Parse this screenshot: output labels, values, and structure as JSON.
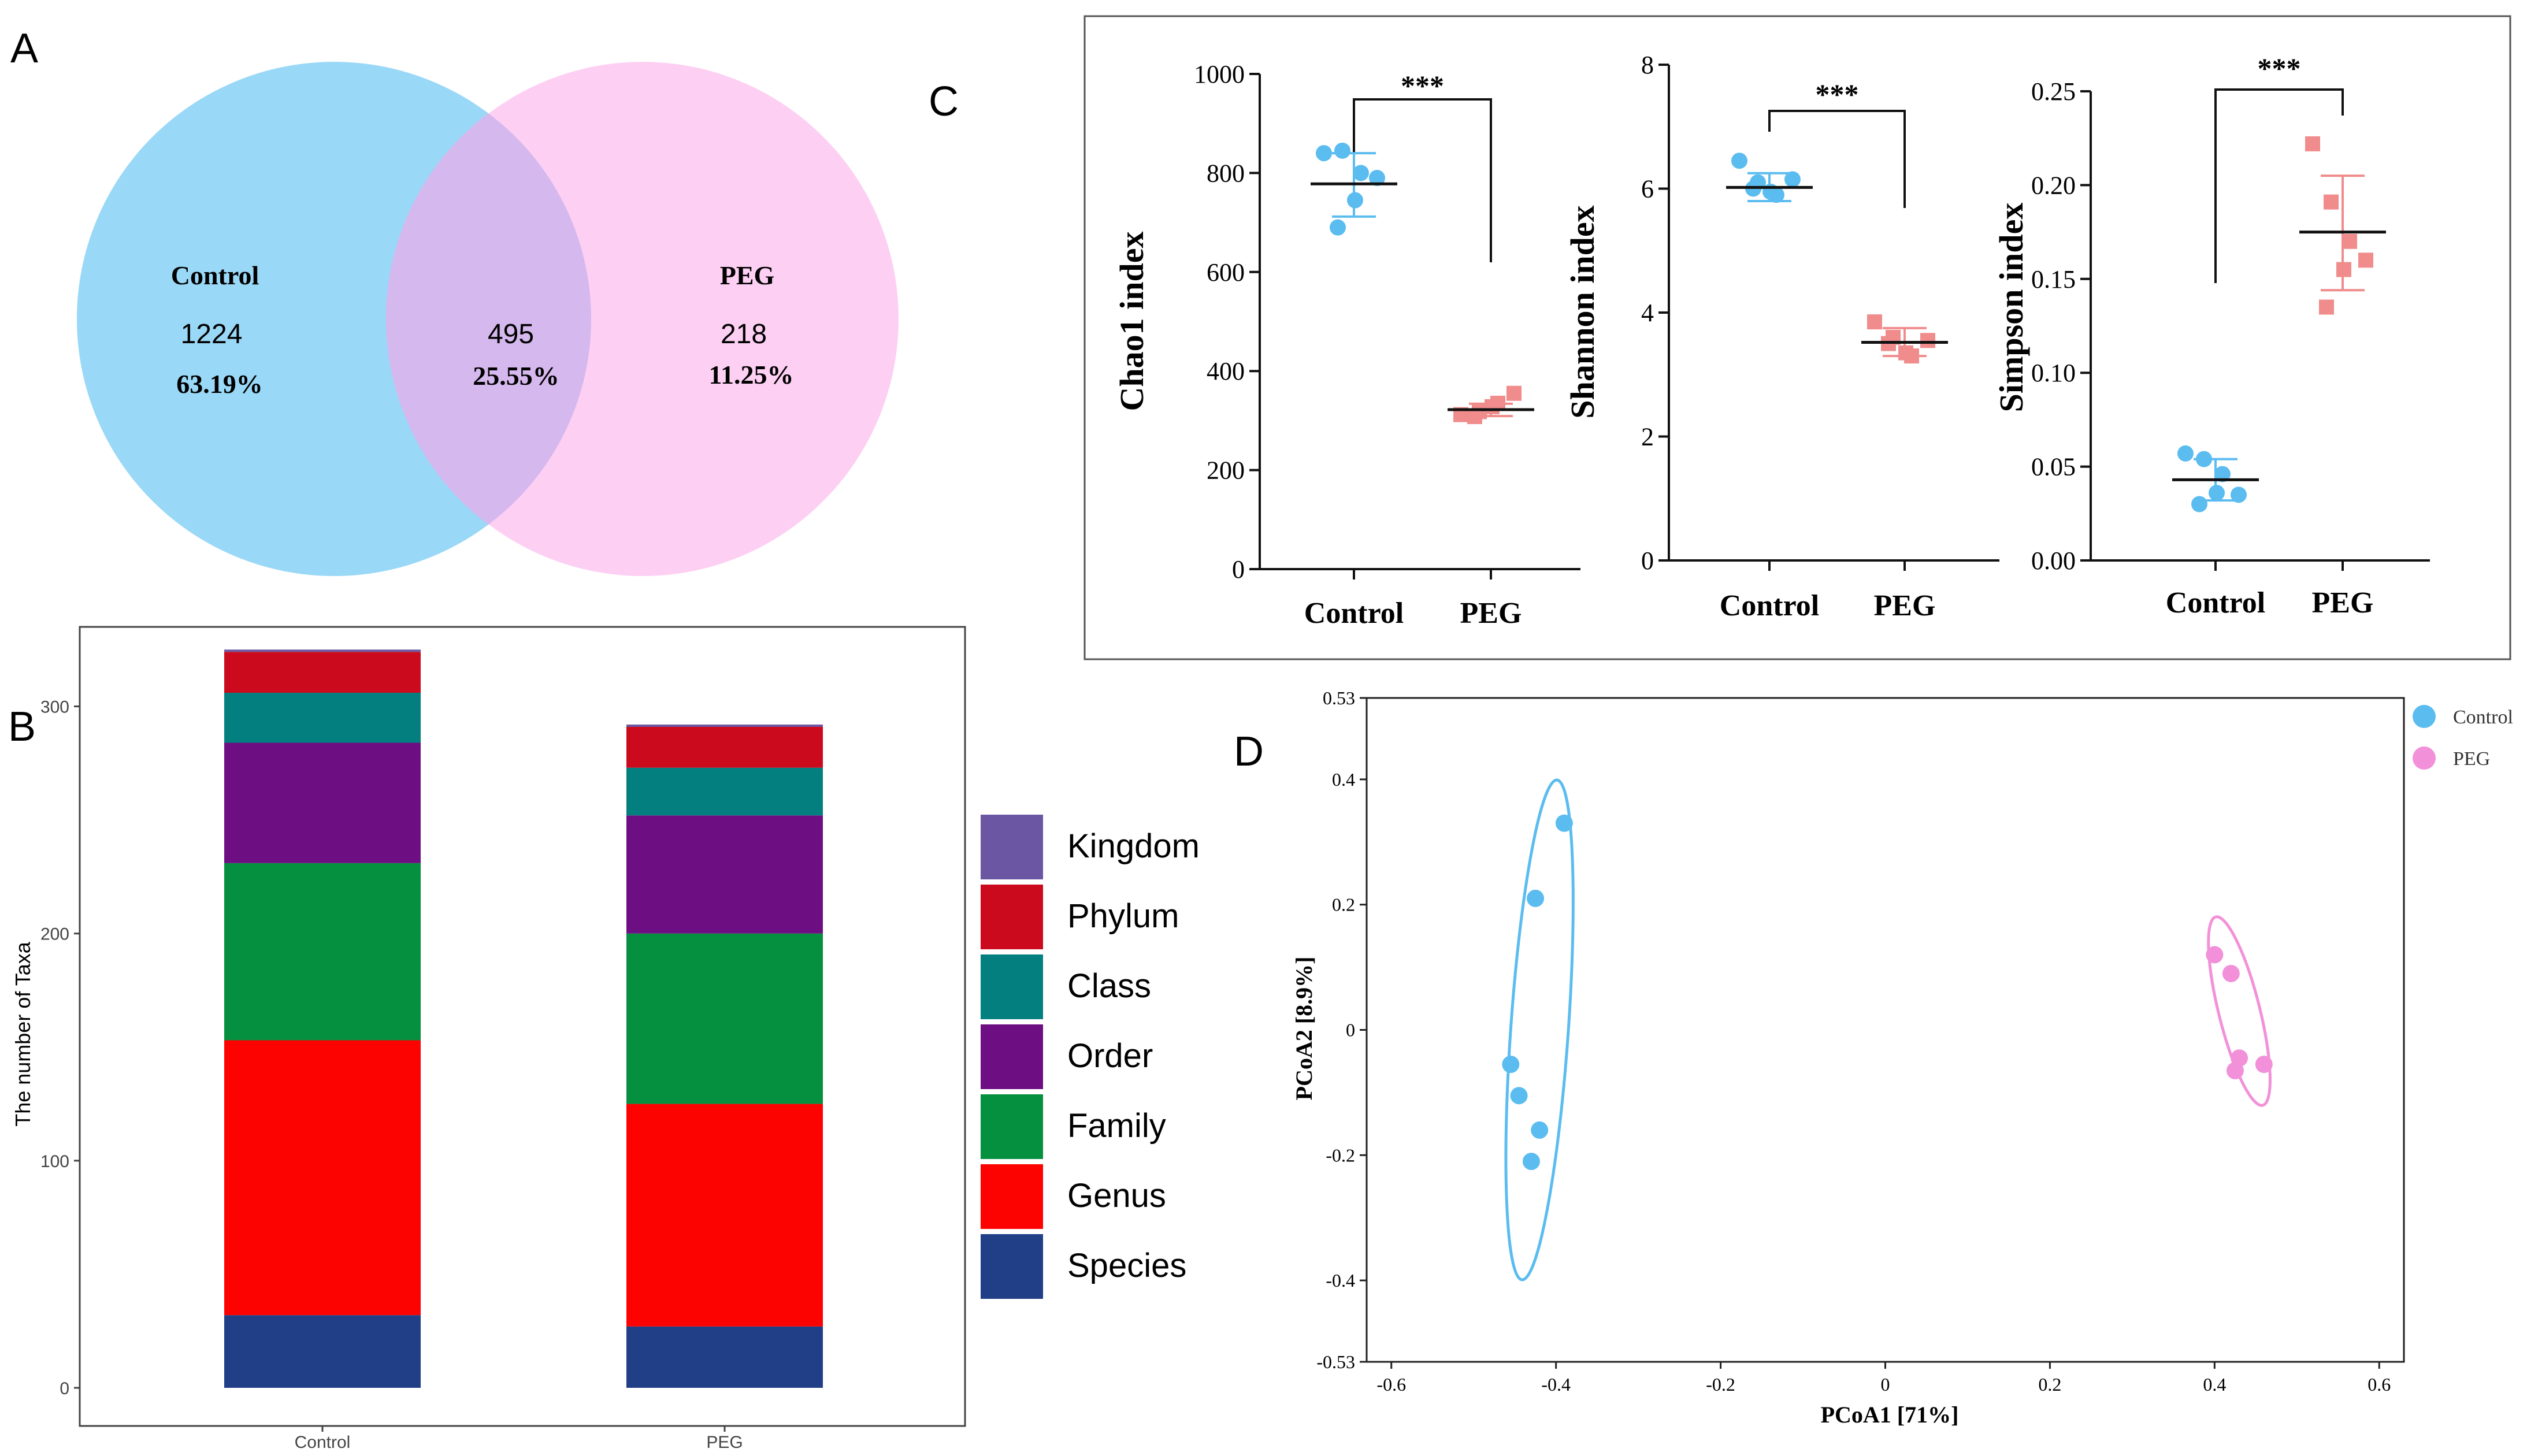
{
  "panel_labels": {
    "a": "A",
    "b": "B",
    "c": "C",
    "d": "D"
  },
  "colors": {
    "control_blue": "#5bbcf0",
    "control_fill": "#9ad8f7",
    "peg_pink": "#f291d9",
    "peg_fill": "#fdd0f3",
    "overlap_fill": "#d5b8ee",
    "peg_marker": "#f08c8c",
    "kingdom": "#6a56a2",
    "phylum": "#cc0a1e",
    "class": "#047f7f",
    "order": "#6d0f83",
    "family": "#05903f",
    "genus": "#fc0302",
    "species": "#203f86"
  },
  "venn": {
    "control": {
      "label": "Control",
      "count": "1224",
      "percent": "63.19%"
    },
    "shared": {
      "count": "495",
      "percent": "25.55%"
    },
    "peg": {
      "label": "PEG",
      "count": "218",
      "percent": "11.25%"
    }
  },
  "chart_data": [
    {
      "id": "taxa",
      "type": "bar",
      "stacked": true,
      "categories": [
        "Control",
        "PEG"
      ],
      "ylabel": "The number of Taxa",
      "xlabel": "",
      "ylim": [
        0,
        335
      ],
      "yticks": [
        0,
        100,
        200,
        300
      ],
      "legend_position": "right",
      "series": [
        {
          "name": "Species",
          "key": "species",
          "values": [
            32,
            27
          ]
        },
        {
          "name": "Genus",
          "key": "genus",
          "values": [
            121,
            98
          ]
        },
        {
          "name": "Family",
          "key": "family",
          "values": [
            78,
            75
          ]
        },
        {
          "name": "Order",
          "key": "order",
          "values": [
            53,
            52
          ]
        },
        {
          "name": "Class",
          "key": "class",
          "values": [
            22,
            21
          ]
        },
        {
          "name": "Phylum",
          "key": "phylum",
          "values": [
            18,
            18
          ]
        },
        {
          "name": "Kingdom",
          "key": "kingdom",
          "values": [
            1,
            1
          ]
        }
      ]
    },
    {
      "id": "chao1",
      "type": "scatter",
      "title": "",
      "ylabel": "Chao1 index",
      "categories": [
        "Control",
        "PEG"
      ],
      "ylim": [
        0,
        1000
      ],
      "yticks": [
        0,
        200,
        400,
        600,
        800,
        1000
      ],
      "ytick_labels": [
        "0",
        "200",
        "400",
        "600",
        "800",
        "1000"
      ],
      "significance": "***",
      "groups": [
        {
          "name": "Control",
          "points": [
            840,
            845,
            800,
            790,
            745,
            690
          ],
          "mean": 778,
          "sd_low": 712,
          "sd_high": 840
        },
        {
          "name": "PEG",
          "points": [
            312,
            318,
            335,
            355,
            328,
            308
          ],
          "mean": 322,
          "sd_low": 309,
          "sd_high": 334
        }
      ]
    },
    {
      "id": "shannon",
      "type": "scatter",
      "ylabel": "Shannon index",
      "categories": [
        "Control",
        "PEG"
      ],
      "ylim": [
        0,
        8
      ],
      "yticks": [
        0,
        2,
        4,
        6,
        8
      ],
      "ytick_labels": [
        "0",
        "2",
        "4",
        "6",
        "8"
      ],
      "significance": "***",
      "groups": [
        {
          "name": "Control",
          "points": [
            6.45,
            6.1,
            5.9,
            6.15,
            5.95,
            6.0
          ],
          "mean": 6.02,
          "sd_low": 5.8,
          "sd_high": 6.25
        },
        {
          "name": "PEG",
          "points": [
            3.85,
            3.6,
            3.3,
            3.55,
            3.35,
            3.5
          ],
          "mean": 3.52,
          "sd_low": 3.3,
          "sd_high": 3.75
        }
      ]
    },
    {
      "id": "simpson",
      "type": "scatter",
      "ylabel": "Simpson index",
      "categories": [
        "Control",
        "PEG"
      ],
      "ylim": [
        0,
        0.25
      ],
      "yticks": [
        0,
        0.05,
        0.1,
        0.15,
        0.2,
        0.25
      ],
      "ytick_labels": [
        "0.00",
        "0.05",
        "0.10",
        "0.15",
        "0.20",
        "0.25"
      ],
      "significance": "***",
      "groups": [
        {
          "name": "Control",
          "points": [
            0.057,
            0.054,
            0.046,
            0.035,
            0.036,
            0.03
          ],
          "mean": 0.043,
          "sd_low": 0.032,
          "sd_high": 0.054
        },
        {
          "name": "PEG",
          "points": [
            0.222,
            0.191,
            0.17,
            0.16,
            0.155,
            0.135
          ],
          "mean": 0.175,
          "sd_low": 0.144,
          "sd_high": 0.205
        }
      ]
    },
    {
      "id": "pcoa",
      "type": "scatter",
      "xlabel": "PCoA1 [71%]",
      "ylabel": "PCoA2 [8.9%]",
      "xlim": [
        -0.63,
        0.63
      ],
      "ylim": [
        -0.53,
        0.53
      ],
      "xticks": [
        -0.6,
        -0.4,
        -0.2,
        0,
        0.2,
        0.4,
        0.6
      ],
      "xtick_labels": [
        "-0.6",
        "-0.4",
        "-0.2",
        "0",
        "0.2",
        "0.4",
        "0.6"
      ],
      "yticks": [
        -0.53,
        -0.4,
        -0.2,
        0,
        0.2,
        0.4,
        0.53
      ],
      "ytick_labels": [
        "-0.53",
        "-0.4",
        "-0.2",
        "0",
        "0.2",
        "0.4",
        "0.53"
      ],
      "legend_position": "top-right",
      "series": [
        {
          "name": "Control",
          "points": [
            [
              -0.39,
              0.33
            ],
            [
              -0.425,
              0.21
            ],
            [
              -0.455,
              -0.055
            ],
            [
              -0.445,
              -0.105
            ],
            [
              -0.42,
              -0.16
            ],
            [
              -0.43,
              -0.21
            ]
          ],
          "ellipse": {
            "cx": -0.42,
            "cy": 0.0,
            "rx": 0.035,
            "ry": 0.4,
            "rotation_deg": 4
          }
        },
        {
          "name": "PEG",
          "points": [
            [
              0.4,
              0.12
            ],
            [
              0.42,
              0.09
            ],
            [
              0.43,
              -0.045
            ],
            [
              0.425,
              -0.065
            ],
            [
              0.46,
              -0.055
            ]
          ],
          "ellipse": {
            "cx": 0.43,
            "cy": 0.03,
            "rx": 0.025,
            "ry": 0.155,
            "rotation_deg": -14
          }
        }
      ]
    }
  ]
}
